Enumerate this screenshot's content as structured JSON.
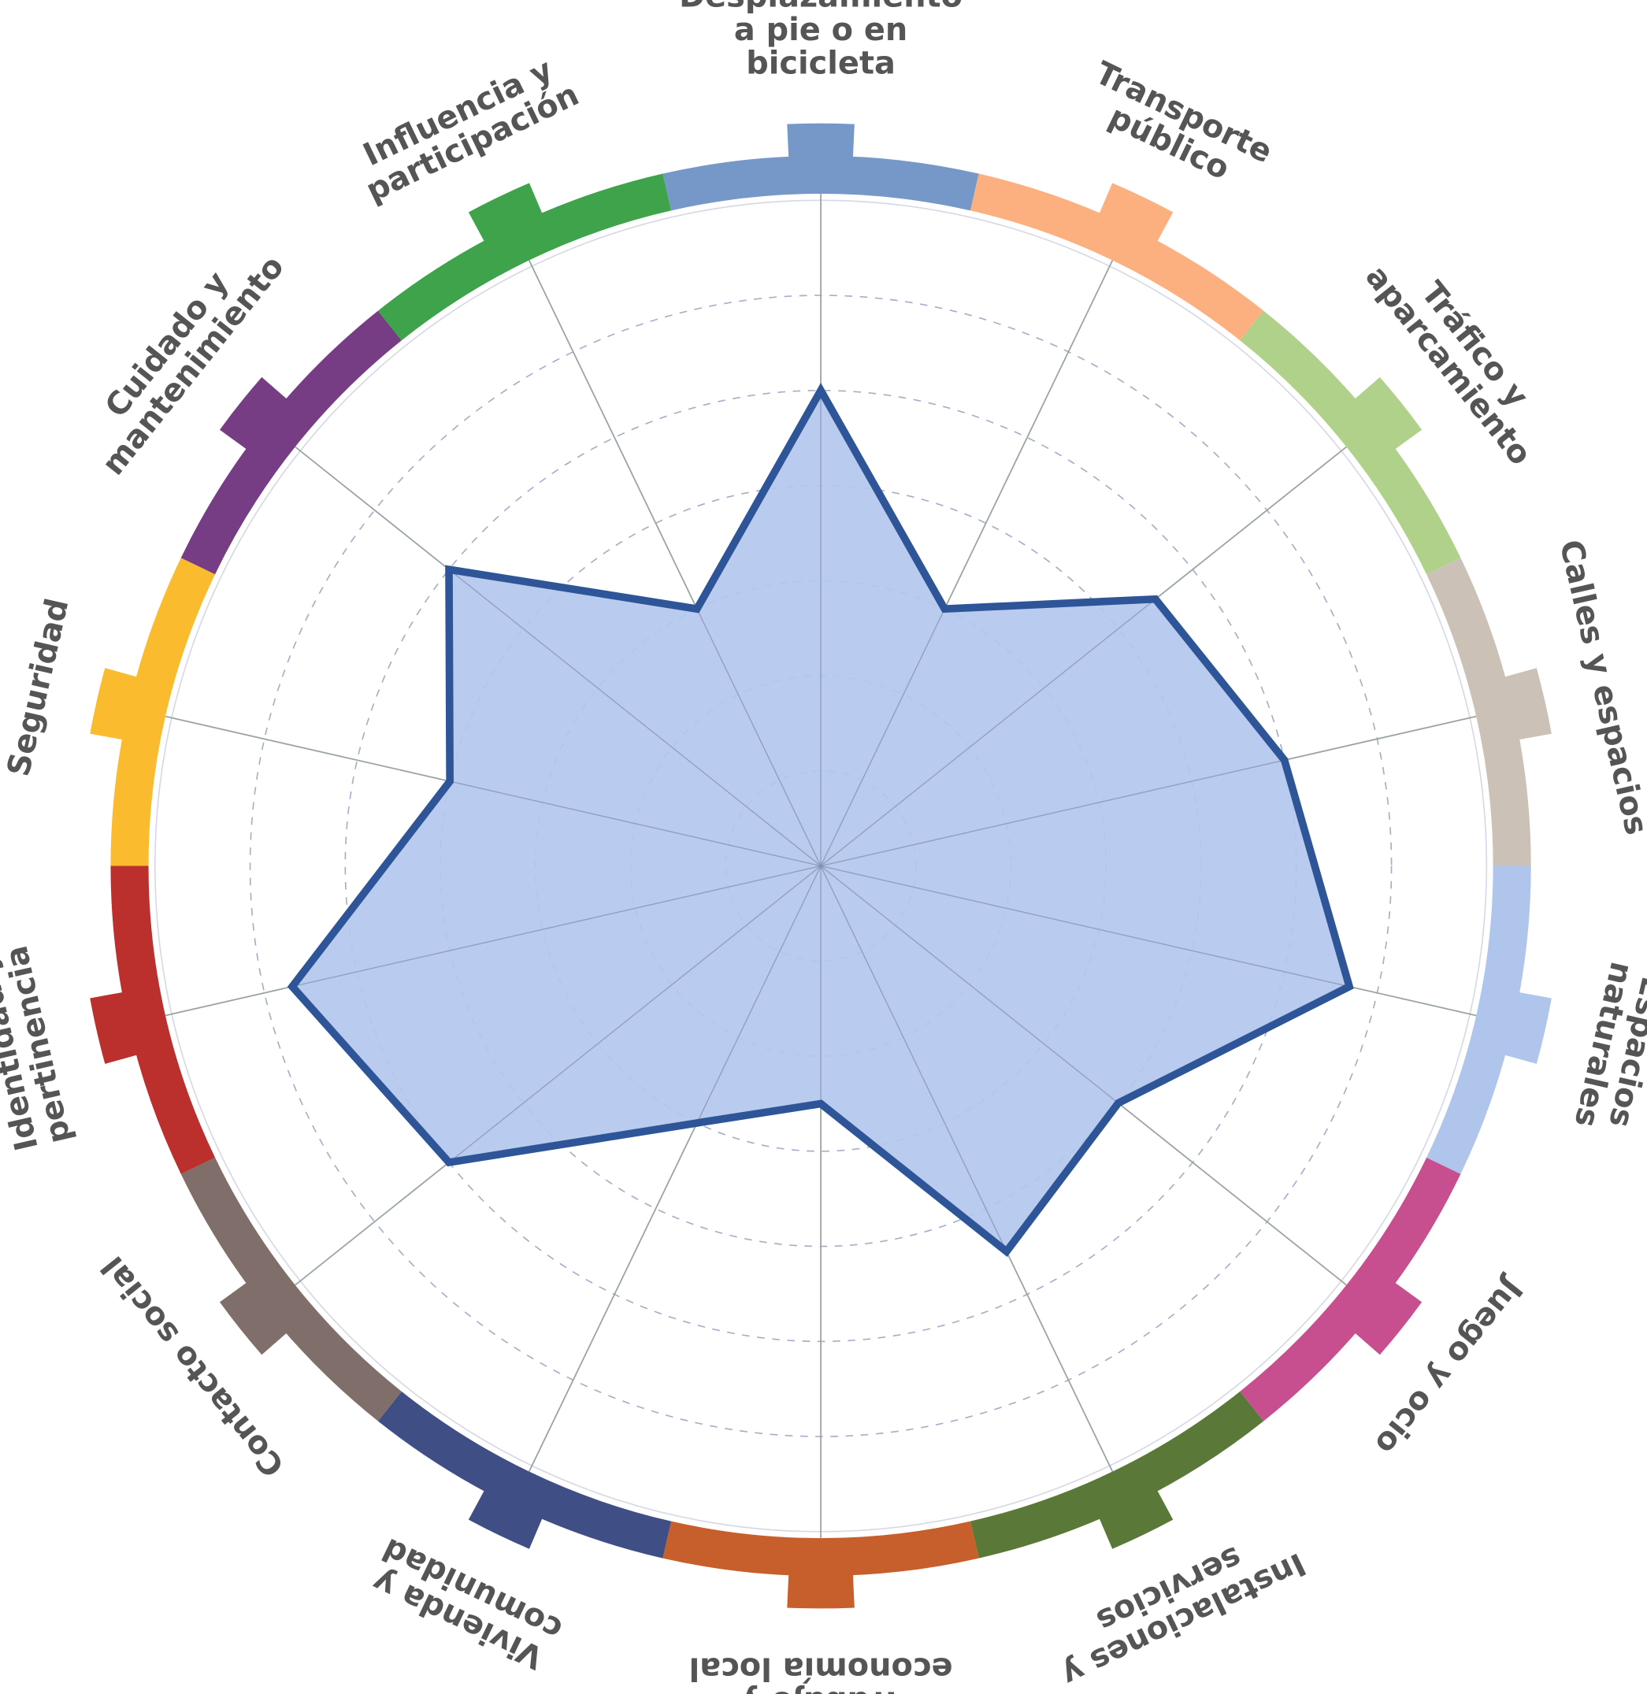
{
  "chart_data": {
    "type": "radar",
    "title": "",
    "scale": {
      "min": 0,
      "max": 7,
      "rings": [
        1,
        2,
        3,
        4,
        5,
        6,
        7
      ]
    },
    "categories": [
      {
        "label": "Desplazamiento a pie o en bicicleta",
        "lines": [
          "Desplazamiento",
          "a pie o en",
          "bicicleta"
        ],
        "color": "#7698c8",
        "value": 5.0
      },
      {
        "label": "Transporte público",
        "lines": [
          "Transporte",
          "público"
        ],
        "color": "#fcb07f",
        "value": 3.0
      },
      {
        "label": "Tráfico y aparcamiento",
        "lines": [
          "Tráfico y",
          "aparcamiento"
        ],
        "color": "#b0d18a",
        "value": 4.5
      },
      {
        "label": "Calles y espacios",
        "lines": [
          "Calles y espacios"
        ],
        "color": "#cbc1b6",
        "value": 5.0
      },
      {
        "label": "Espacios naturales",
        "lines": [
          "Espacios",
          "naturales"
        ],
        "color": "#b0c5ec",
        "value": 5.7
      },
      {
        "label": "Juego y ocio",
        "lines": [
          "Juego y ocio"
        ],
        "color": "#c84f8f",
        "value": 4.0
      },
      {
        "label": "Instalaciones y servicios",
        "lines": [
          "Instalaciones y",
          "servicios"
        ],
        "color": "#5a7838",
        "value": 4.5
      },
      {
        "label": "Trabajo y economía local",
        "lines": [
          "Trabajo y",
          "economía local"
        ],
        "color": "#c75f2c",
        "value": 2.5
      },
      {
        "label": "Vivienda y comunidad",
        "lines": [
          "Vivienda y",
          "comunidad"
        ],
        "color": "#3f4f86",
        "value": 3.0
      },
      {
        "label": "Contacto social",
        "lines": [
          "Contacto social"
        ],
        "color": "#7f6e6a",
        "value": 5.0
      },
      {
        "label": "Identidad y pertinencia",
        "lines": [
          "Identidad y",
          "pertinencia"
        ],
        "color": "#bb2f2c",
        "value": 5.7
      },
      {
        "label": "Seguridad",
        "lines": [
          "Seguridad"
        ],
        "color": "#fbbb2e",
        "value": 4.0
      },
      {
        "label": "Cuidado y mantenimiento",
        "lines": [
          "Cuidado y",
          "mantenimiento"
        ],
        "color": "#763d84",
        "value": 5.0
      },
      {
        "label": "Influencia y participación",
        "lines": [
          "Influencia y",
          "participación"
        ],
        "color": "#3ea34b",
        "value": 3.0
      }
    ],
    "polygon_fill": "#b3c7ee",
    "polygon_stroke": "#2e5597",
    "grid": true
  }
}
